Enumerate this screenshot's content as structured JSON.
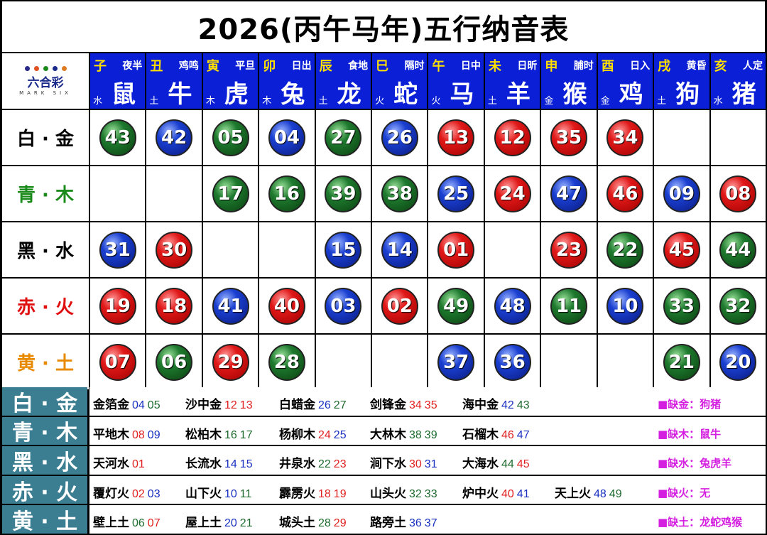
{
  "title": "2026(丙午马年)五行纳音表",
  "logo": {
    "text": "六合彩",
    "sub": "MARK SIX"
  },
  "zodiacs": [
    {
      "branch": "子",
      "time": "夜半",
      "animal": "鼠",
      "element": "水"
    },
    {
      "branch": "丑",
      "time": "鸡鸣",
      "animal": "牛",
      "element": "土"
    },
    {
      "branch": "寅",
      "time": "平旦",
      "animal": "虎",
      "element": "木"
    },
    {
      "branch": "卯",
      "time": "日出",
      "animal": "兔",
      "element": "木"
    },
    {
      "branch": "辰",
      "time": "食地",
      "animal": "龙",
      "element": "土"
    },
    {
      "branch": "巳",
      "time": "隔时",
      "animal": "蛇",
      "element": "火"
    },
    {
      "branch": "午",
      "time": "日中",
      "animal": "马",
      "element": "火"
    },
    {
      "branch": "未",
      "time": "日昕",
      "animal": "羊",
      "element": "土"
    },
    {
      "branch": "申",
      "time": "脯时",
      "animal": "猴",
      "element": "金"
    },
    {
      "branch": "酉",
      "time": "日入",
      "animal": "鸡",
      "element": "金"
    },
    {
      "branch": "戌",
      "time": "黄昏",
      "animal": "狗",
      "element": "土"
    },
    {
      "branch": "亥",
      "time": "人定",
      "animal": "猪",
      "element": "水"
    }
  ],
  "rows": [
    {
      "label": "白 · 金",
      "color": "#000000",
      "numbers": [
        "43",
        "42",
        "05",
        "04",
        "27",
        "26",
        "13",
        "12",
        "35",
        "34",
        "",
        ""
      ]
    },
    {
      "label": "青 · 木",
      "color": "#1a8a1a",
      "numbers": [
        "",
        "",
        "17",
        "16",
        "39",
        "38",
        "25",
        "24",
        "47",
        "46",
        "09",
        "08"
      ]
    },
    {
      "label": "黑 · 水",
      "color": "#000000",
      "numbers": [
        "31",
        "30",
        "",
        "",
        "15",
        "14",
        "01",
        "",
        "23",
        "22",
        "45",
        "44"
      ]
    },
    {
      "label": "赤 · 火",
      "color": "#e01010",
      "numbers": [
        "19",
        "18",
        "41",
        "40",
        "03",
        "02",
        "49",
        "48",
        "11",
        "10",
        "33",
        "32"
      ]
    },
    {
      "label": "黄 · 土",
      "color": "#e88a00",
      "numbers": [
        "07",
        "06",
        "29",
        "28",
        "",
        "",
        "37",
        "36",
        "",
        "",
        "21",
        "20"
      ]
    }
  ],
  "ball_colors": {
    "red": [
      "01",
      "02",
      "07",
      "08",
      "12",
      "13",
      "18",
      "19",
      "23",
      "24",
      "29",
      "30",
      "34",
      "35",
      "40",
      "45",
      "46"
    ],
    "blue": [
      "03",
      "04",
      "09",
      "10",
      "14",
      "15",
      "20",
      "25",
      "26",
      "31",
      "36",
      "37",
      "41",
      "42",
      "47",
      "48"
    ],
    "green": [
      "05",
      "06",
      "11",
      "16",
      "17",
      "21",
      "22",
      "27",
      "28",
      "32",
      "33",
      "38",
      "39",
      "43",
      "44",
      "49"
    ]
  },
  "nayin": [
    {
      "label": "白 · 金",
      "items": [
        {
          "name": "金箔金",
          "nums": [
            "04",
            "05"
          ]
        },
        {
          "name": "沙中金",
          "nums": [
            "12",
            "13"
          ]
        },
        {
          "name": "白蜡金",
          "nums": [
            "26",
            "27"
          ]
        },
        {
          "name": "剑锋金",
          "nums": [
            "34",
            "35"
          ]
        },
        {
          "name": "海中金",
          "nums": [
            "42",
            "43"
          ]
        }
      ],
      "missing": "■缺金：狗猪"
    },
    {
      "label": "青 · 木",
      "items": [
        {
          "name": "平地木",
          "nums": [
            "08",
            "09"
          ]
        },
        {
          "name": "松柏木",
          "nums": [
            "16",
            "17"
          ]
        },
        {
          "name": "杨柳木",
          "nums": [
            "24",
            "25"
          ]
        },
        {
          "name": "大林木",
          "nums": [
            "38",
            "39"
          ]
        },
        {
          "name": "石榴木",
          "nums": [
            "46",
            "47"
          ]
        }
      ],
      "missing": "■缺木：鼠牛"
    },
    {
      "label": "黑 · 水",
      "items": [
        {
          "name": "天河水",
          "nums": [
            "01"
          ]
        },
        {
          "name": "长流水",
          "nums": [
            "14",
            "15"
          ]
        },
        {
          "name": "井泉水",
          "nums": [
            "22",
            "23"
          ]
        },
        {
          "name": "涧下水",
          "nums": [
            "30",
            "31"
          ]
        },
        {
          "name": "大海水",
          "nums": [
            "44",
            "45"
          ]
        }
      ],
      "missing": "■缺水：兔虎羊"
    },
    {
      "label": "赤 · 火",
      "items": [
        {
          "name": "覆灯火",
          "nums": [
            "02",
            "03"
          ]
        },
        {
          "name": "山下火",
          "nums": [
            "10",
            "11"
          ]
        },
        {
          "name": "霹雳火",
          "nums": [
            "18",
            "19"
          ]
        },
        {
          "name": "山头火",
          "nums": [
            "32",
            "33"
          ]
        },
        {
          "name": "炉中火",
          "nums": [
            "40",
            "41"
          ]
        },
        {
          "name": "天上火",
          "nums": [
            "48",
            "49"
          ]
        }
      ],
      "missing": "■缺火：无"
    },
    {
      "label": "黄 · 土",
      "items": [
        {
          "name": "壁上土",
          "nums": [
            "06",
            "07"
          ]
        },
        {
          "name": "屋上土",
          "nums": [
            "20",
            "21"
          ]
        },
        {
          "name": "城头土",
          "nums": [
            "28",
            "29"
          ]
        },
        {
          "name": "路旁土",
          "nums": [
            "36",
            "37"
          ]
        }
      ],
      "missing": "■缺土：龙蛇鸡猴"
    }
  ],
  "num_text_colors": {
    "red": "#e02020",
    "blue": "#1a30c0",
    "green": "#1e6a2e"
  }
}
